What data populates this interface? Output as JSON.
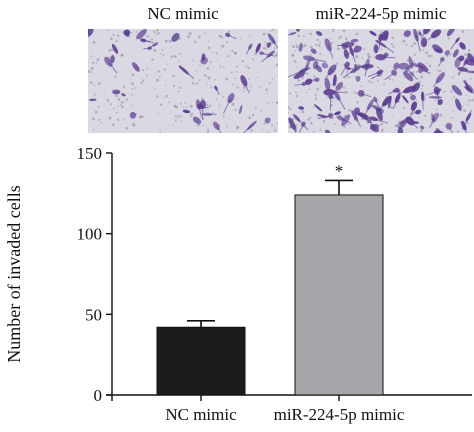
{
  "panels": {
    "left_label": "NC mimic",
    "right_label": "miR-224-5p mimic",
    "stain_color": "#5a3b8f",
    "background_color": "#d9d8e3"
  },
  "chart_data": {
    "type": "bar",
    "categories": [
      "NC mimic",
      "miR-224-5p mimic"
    ],
    "series": [
      {
        "values": [
          42,
          124
        ],
        "errors": [
          4,
          9
        ],
        "colors": [
          "#1c1c1c",
          "#a5a7ab"
        ]
      }
    ],
    "title": "",
    "xlabel": "",
    "ylabel": "Number of invaded cells",
    "ylim": [
      0,
      150
    ],
    "yticks": [
      0,
      50,
      100,
      150
    ],
    "annotations": [
      {
        "category": "miR-224-5p mimic",
        "text": "*"
      }
    ],
    "grid": false,
    "legend": "none"
  }
}
